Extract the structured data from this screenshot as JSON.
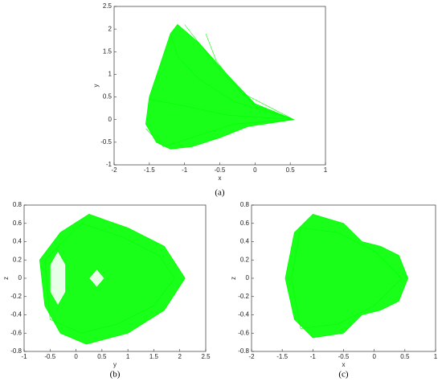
{
  "chart_data": [
    {
      "type": "line",
      "xlabel": "x",
      "ylabel": "y",
      "caption": "(a)",
      "xlim": [
        -2,
        1
      ],
      "ylim": [
        -1,
        2.5
      ],
      "xticks": [
        -2,
        -1.5,
        -1,
        -0.5,
        0,
        0.5,
        1
      ],
      "yticks": [
        -1,
        -0.5,
        0,
        0.5,
        1,
        1.5,
        2,
        2.5
      ],
      "series": [
        {
          "color": "#00ff00",
          "fill": "#00ff00",
          "x": [
            0.55,
            0,
            -0.4,
            -0.8,
            -1.1,
            -1.2,
            -1.35,
            -1.5,
            -1.55,
            -1.4,
            -1.2,
            -0.9,
            -0.5,
            -0.1,
            0.55
          ],
          "y": [
            0,
            0.35,
            1.0,
            1.7,
            2.1,
            1.9,
            1.2,
            0.5,
            -0.1,
            -0.5,
            -0.65,
            -0.6,
            -0.4,
            -0.15,
            0
          ]
        },
        {
          "color": "#00ff00",
          "x": [
            0.55,
            0,
            -0.5,
            -0.8,
            -1.0
          ],
          "y": [
            0,
            0.3,
            1.1,
            1.7,
            2.1
          ]
        },
        {
          "color": "#00ff00",
          "x": [
            0.55,
            -0.3,
            -0.8,
            -1.1,
            -1.2
          ],
          "y": [
            0,
            0.4,
            0.9,
            1.4,
            1.9
          ]
        },
        {
          "color": "#00ff00",
          "x": [
            0.55,
            -0.4,
            -1.0,
            -1.5
          ],
          "y": [
            0,
            0.1,
            0.3,
            0.45
          ]
        },
        {
          "color": "#00ff00",
          "x": [
            0.55,
            -0.3,
            -0.9,
            -1.3,
            -1.55
          ],
          "y": [
            0,
            -0.1,
            -0.4,
            -0.6,
            -0.2
          ]
        },
        {
          "color": "#00ff00",
          "x": [
            0.55,
            -0.2,
            -0.55,
            -0.7
          ],
          "y": [
            0,
            0.6,
            1.3,
            1.9
          ]
        }
      ]
    },
    {
      "type": "line",
      "xlabel": "y",
      "ylabel": "z",
      "caption": "(b)",
      "xlim": [
        -1,
        2.5
      ],
      "ylim": [
        -0.8,
        0.8
      ],
      "xticks": [
        -1,
        -0.5,
        0,
        0.5,
        1,
        1.5,
        2,
        2.5
      ],
      "yticks": [
        -0.8,
        -0.6,
        -0.4,
        -0.2,
        0,
        0.2,
        0.4,
        0.6,
        0.8
      ],
      "series": [
        {
          "color": "#00ff00",
          "fill": "#00ff00",
          "x": [
            0.25,
            1.0,
            1.7,
            2.1,
            1.7,
            1.0,
            0.2,
            -0.3,
            -0.6,
            -0.7,
            -0.3,
            0.25
          ],
          "y": [
            0.7,
            0.55,
            0.35,
            0,
            -0.35,
            -0.6,
            -0.72,
            -0.6,
            -0.3,
            0.2,
            0.5,
            0.7
          ]
        },
        {
          "color": "#00ff00",
          "fill": "#ffffff",
          "x": [
            -0.35,
            -0.2,
            -0.2,
            -0.35,
            -0.5,
            -0.5,
            -0.35
          ],
          "y": [
            0.3,
            0.15,
            -0.15,
            -0.3,
            -0.15,
            0.15,
            0.3
          ]
        },
        {
          "color": "#00ff00",
          "fill": "#ffffff",
          "x": [
            0.4,
            0.55,
            0.4,
            0.25,
            0.4
          ],
          "y": [
            0.1,
            0,
            -0.1,
            0,
            0.1
          ]
        },
        {
          "color": "#00ff00",
          "x": [
            0.1,
            0.9,
            1.6,
            1.9,
            1.5,
            0.8,
            0.1,
            -0.5,
            -0.6,
            0.1
          ],
          "y": [
            0.6,
            0.45,
            0.25,
            0,
            -0.3,
            -0.5,
            -0.6,
            -0.45,
            0.2,
            0.6
          ]
        }
      ]
    },
    {
      "type": "line",
      "xlabel": "x",
      "ylabel": "z",
      "caption": "(c)",
      "xlim": [
        -2,
        1
      ],
      "ylim": [
        -0.8,
        0.8
      ],
      "xticks": [
        -2,
        -1.5,
        -1,
        -0.5,
        0,
        0.5,
        1
      ],
      "yticks": [
        -0.8,
        -0.6,
        -0.4,
        -0.2,
        0,
        0.2,
        0.4,
        0.6,
        0.8
      ],
      "series": [
        {
          "color": "#00ff00",
          "fill": "#00ff00",
          "x": [
            -1.3,
            -1.0,
            -0.5,
            -0.2,
            0.1,
            0.4,
            0.55,
            0.4,
            0.1,
            -0.2,
            -0.5,
            -1.0,
            -1.3,
            -1.45,
            -1.3
          ],
          "y": [
            0.5,
            0.7,
            0.6,
            0.4,
            0.35,
            0.25,
            0,
            -0.25,
            -0.35,
            -0.4,
            -0.6,
            -0.65,
            -0.45,
            0,
            0.5
          ]
        },
        {
          "color": "#00ff00",
          "x": [
            -1.2,
            -0.6,
            0,
            0.45,
            0,
            -0.6,
            -1.2,
            -1.35,
            -1.2
          ],
          "y": [
            0.55,
            0.5,
            0.3,
            0,
            -0.3,
            -0.5,
            -0.55,
            0,
            0.55
          ]
        }
      ]
    }
  ]
}
